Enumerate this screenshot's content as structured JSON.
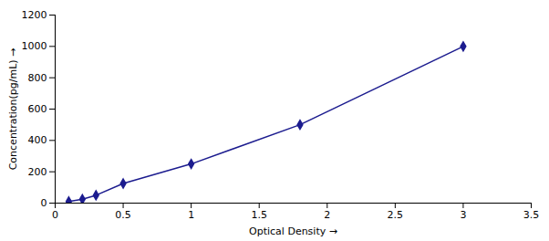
{
  "chart_data": {
    "type": "line",
    "x": [
      0.1,
      0.2,
      0.3,
      0.5,
      1.0,
      1.8,
      3.0
    ],
    "values": [
      10,
      25,
      50,
      125,
      250,
      500,
      1000
    ],
    "color": "#1c1c8f",
    "marker": "diamond",
    "xlabel": "Optical Density",
    "ylabel": "Concentration(pg/mL)",
    "xlim": [
      0,
      3.5
    ],
    "ylim": [
      0,
      1200
    ],
    "xticks": [
      0,
      0.5,
      1,
      1.5,
      2,
      2.5,
      3,
      3.5
    ],
    "yticks": [
      0,
      200,
      400,
      600,
      800,
      1000,
      1200
    ],
    "grid": false
  }
}
